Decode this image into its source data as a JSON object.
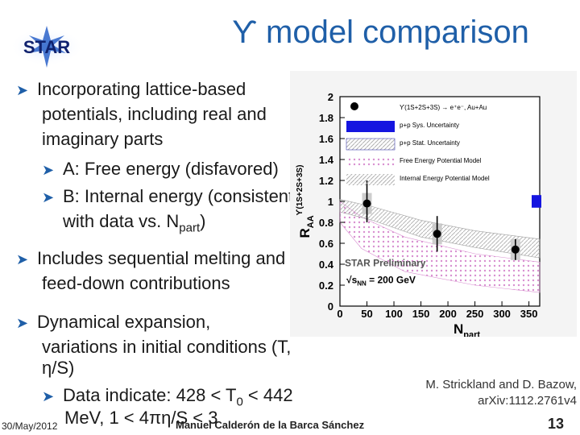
{
  "title": "ϒ model comparison",
  "logo": "STAR",
  "bullets": {
    "b1_l1": "Incorporating lattice-based",
    "b1_l2": "potentials, including real and",
    "b1_l3": "imaginary parts",
    "b1a": "A: Free energy (disfavored)",
    "b1b_l1": "B: Internal energy (consistent",
    "b1b_l2_pre": "with data vs. N",
    "b1b_l2_sub": "part",
    "b1b_l2_post": ")",
    "b2_l1": "Includes sequential melting and",
    "b2_l2": "feed-down contributions",
    "b3_l1": "Dynamical expansion,",
    "b3_l2": "variations in initial conditions (T,",
    "b3_l3": "η/S)",
    "b3a_l1_pre": "Data indicate: 428 < T",
    "b3a_l1_sub": "0",
    "b3a_l1_post": " < 442",
    "b3a_l2": "MeV,  1 < 4πη/S < 3"
  },
  "citation": {
    "line1": "M. Strickland and D. Bazow,",
    "line2": "arXiv:1112.2761v4"
  },
  "footer": {
    "date": "30/May/2012",
    "author": "Manuel Calderón de la Barca Sánchez",
    "page": "13"
  },
  "chart_data": {
    "type": "scatter",
    "xlabel_main": "N",
    "xlabel_sub": "part",
    "ylabel": "R",
    "ylabel_sub": "AA",
    "ylabel_super": "ϒ(1S+2S+3S)",
    "xlim": [
      0,
      370
    ],
    "ylim": [
      0,
      2
    ],
    "xticks": [
      "0",
      "50",
      "100",
      "150",
      "200",
      "250",
      "300",
      "350"
    ],
    "yticks": [
      "0",
      "0.2",
      "0.4",
      "0.6",
      "0.8",
      "1",
      "1.2",
      "1.4",
      "1.6",
      "1.8",
      "2"
    ],
    "legend": [
      "ϒ(1S+2S+3S) → e⁺e⁻, Au+Au",
      "p+p Sys. Uncertainty",
      "p+p Stat. Uncertainty",
      "Free Energy Potential Model",
      "Internal Energy Potential Model"
    ],
    "annotation_prelim": "STAR Preliminary",
    "annotation_energy": "√s",
    "annotation_energy_sub": "NN",
    "annotation_energy_post": " = 200 GeV",
    "points": [
      {
        "x": 50,
        "y": 0.98,
        "ylo": 0.8,
        "yhi": 1.2
      },
      {
        "x": 180,
        "y": 0.69,
        "ylo": 0.52,
        "yhi": 0.86
      },
      {
        "x": 325,
        "y": 0.54,
        "ylo": 0.44,
        "yhi": 0.64
      }
    ],
    "colors": {
      "point": "#000000",
      "sys_box": "#1515e0",
      "free_band": "#d88fd0",
      "internal_band": "#b0b0b0"
    }
  }
}
